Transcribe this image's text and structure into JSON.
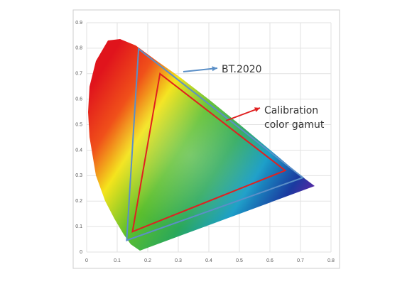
{
  "chart_data": {
    "type": "chromaticity",
    "xlim": [
      0,
      0.8
    ],
    "ylim": [
      0,
      0.9
    ],
    "xticks": [
      0,
      0.1,
      0.2,
      0.3,
      0.4,
      0.5,
      0.6,
      0.7,
      0.8
    ],
    "yticks": [
      0,
      0.1,
      0.2,
      0.3,
      0.4,
      0.5,
      0.6,
      0.7,
      0.8,
      0.9
    ],
    "grid": true,
    "series": [
      {
        "label": [
          "BT.2020"
        ],
        "color": "#5b8fc7",
        "x": [
          0.708,
          0.17,
          0.131
        ],
        "y": [
          0.292,
          0.797,
          0.046
        ]
      },
      {
        "label": [
          "Calibration",
          "color gamut"
        ],
        "color": "#e02020",
        "x": [
          0.65,
          0.24,
          0.15
        ],
        "y": [
          0.32,
          0.7,
          0.08
        ]
      }
    ]
  }
}
